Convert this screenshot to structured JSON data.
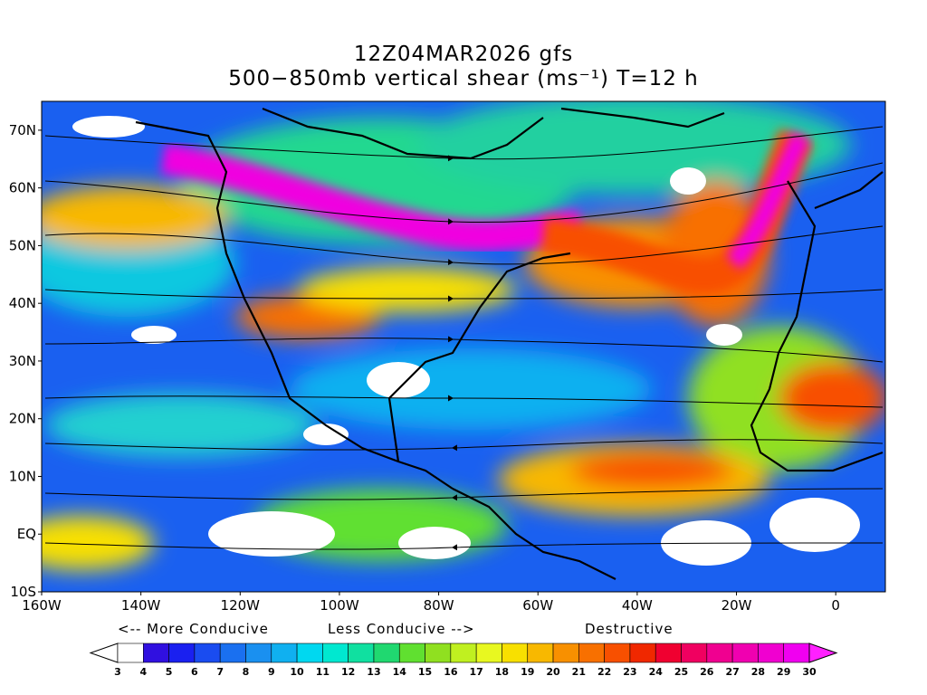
{
  "title": {
    "line1": "12Z04MAR2026 gfs",
    "line2": "500−850mb vertical shear (ms⁻¹) T=12 h"
  },
  "map": {
    "lat_labels": [
      "70N",
      "60N",
      "50N",
      "40N",
      "30N",
      "20N",
      "10N",
      "EQ",
      "10S"
    ],
    "lon_labels": [
      "160W",
      "140W",
      "120W",
      "100W",
      "80W",
      "60W",
      "40W",
      "20W",
      "0"
    ],
    "extent": {
      "lon_min": -160,
      "lon_max": 10,
      "lat_min": -10,
      "lat_max": 75
    }
  },
  "legend": {
    "more_conducive": "<-- More Conducive",
    "less_conducive": "Less Conducive -->",
    "destructive": "Destructive"
  },
  "colorbar": {
    "labels": [
      "3",
      "4",
      "5",
      "6",
      "7",
      "8",
      "9",
      "10",
      "11",
      "12",
      "13",
      "14",
      "15",
      "16",
      "17",
      "18",
      "19",
      "20",
      "21",
      "22",
      "23",
      "24",
      "25",
      "26",
      "27",
      "28",
      "29",
      "30"
    ],
    "colors": [
      "#ffffff",
      "#3010e0",
      "#1a20f0",
      "#1a4cf0",
      "#1a70f0",
      "#1a90f0",
      "#10b0f0",
      "#00d8f0",
      "#00e8d0",
      "#10e0a0",
      "#20d870",
      "#60e030",
      "#90e020",
      "#c0f020",
      "#e8f820",
      "#f8e000",
      "#f8b800",
      "#f89000",
      "#f87000",
      "#f85000",
      "#f02800",
      "#f00030",
      "#f00060",
      "#f00090",
      "#f000b0",
      "#f000d0",
      "#f000f0"
    ],
    "arrow_left_color": "#ffffff",
    "arrow_right_color": "#ff20ff"
  },
  "colors": {
    "jet_core": "#f000e0",
    "jet_edge": "#f87000",
    "background_shear": "#1a60f0"
  }
}
